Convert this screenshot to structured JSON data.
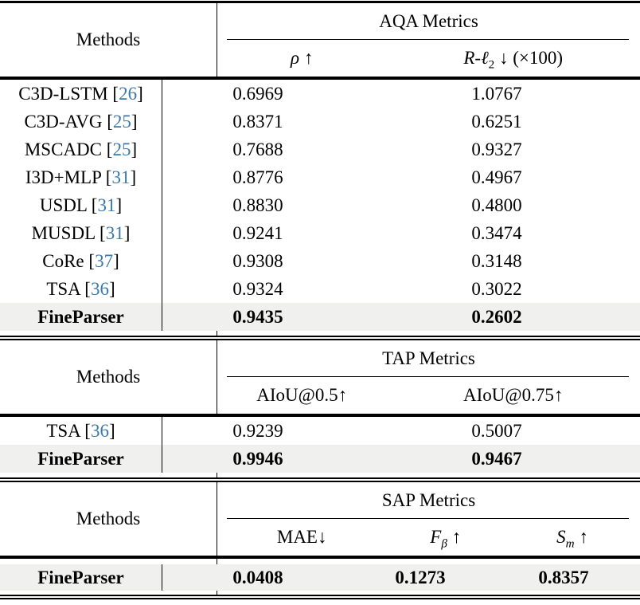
{
  "punct": {
    "lbracket": "[",
    "rbracket": "]"
  },
  "colors": {
    "citation": "#3a78ad",
    "highlight_row": "#f0f0ef",
    "rule": "#000000"
  },
  "sections": {
    "aqa": {
      "methods_label": "Methods",
      "title": "AQA Metrics",
      "col1": {
        "sym": "ρ",
        "arrow": "↑"
      },
      "col2": {
        "r": "R",
        "dash": "-",
        "ell": "ℓ",
        "sub": "2",
        "arrow": "↓",
        "scale": "(×100)"
      },
      "rows": [
        {
          "name": "C3D-LSTM",
          "cite": "26",
          "v1": "0.6969",
          "v2": "1.0767"
        },
        {
          "name": "C3D-AVG",
          "cite": "25",
          "v1": "0.8371",
          "v2": "0.6251"
        },
        {
          "name": "MSCADC",
          "cite": "25",
          "v1": "0.7688",
          "v2": "0.9327"
        },
        {
          "name": "I3D+MLP",
          "cite": "31",
          "v1": "0.8776",
          "v2": "0.4967"
        },
        {
          "name": "USDL",
          "cite": "31",
          "v1": "0.8830",
          "v2": "0.4800"
        },
        {
          "name": "MUSDL",
          "cite": "31",
          "v1": "0.9241",
          "v2": "0.3474"
        },
        {
          "name": "CoRe",
          "cite": "37",
          "v1": "0.9308",
          "v2": "0.3148"
        },
        {
          "name": "TSA",
          "cite": "36",
          "v1": "0.9324",
          "v2": "0.3022"
        },
        {
          "name": "FineParser",
          "v1": "0.9435",
          "v2": "0.2602"
        }
      ]
    },
    "tap": {
      "methods_label": "Methods",
      "title": "TAP Metrics",
      "col1": "AIoU@0.5↑",
      "col2": "AIoU@0.75↑",
      "rows": [
        {
          "name": "TSA",
          "cite": "36",
          "v1": "0.9239",
          "v2": "0.5007"
        },
        {
          "name": "FineParser",
          "v1": "0.9946",
          "v2": "0.9467"
        }
      ]
    },
    "sap": {
      "methods_label": "Methods",
      "title": "SAP Metrics",
      "col1": "MAE↓",
      "col2": {
        "letter": "F",
        "sub": "β",
        "arrow": "↑"
      },
      "col3": {
        "letter": "S",
        "sub": "m",
        "arrow": "↑"
      },
      "rows": [
        {
          "name": "FineParser",
          "v1": "0.0408",
          "v2": "0.1273",
          "v3": "0.8357"
        }
      ]
    }
  }
}
